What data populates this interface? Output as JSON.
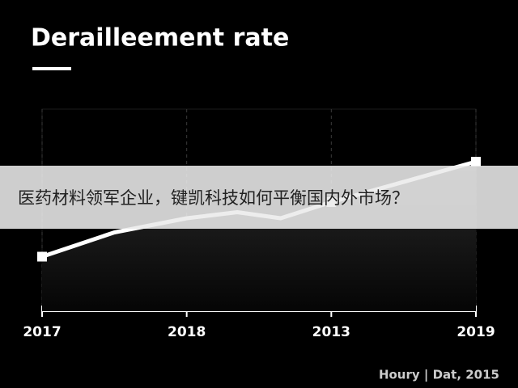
{
  "chart_data": {
    "type": "line",
    "title": "Derailleement rate",
    "x": [
      0,
      0.5,
      1,
      1.35,
      1.65,
      2,
      3
    ],
    "series": [
      {
        "color": "#ffffff",
        "values": [
          27,
          39,
          46,
          49,
          46,
          54,
          74
        ]
      }
    ],
    "xlim": [
      0,
      3
    ],
    "xticks": [
      {
        "value": 0,
        "label": "2017"
      },
      {
        "value": 1,
        "label": "2018"
      },
      {
        "value": 2,
        "label": "2013"
      },
      {
        "value": 3,
        "label": "2019"
      }
    ],
    "ylim": [
      0,
      100
    ],
    "grid": true,
    "source": "Houry | Dat, 2015"
  },
  "overlay": {
    "text": "医药材料领军企业，键凯科技如何平衡国内外市场？"
  }
}
